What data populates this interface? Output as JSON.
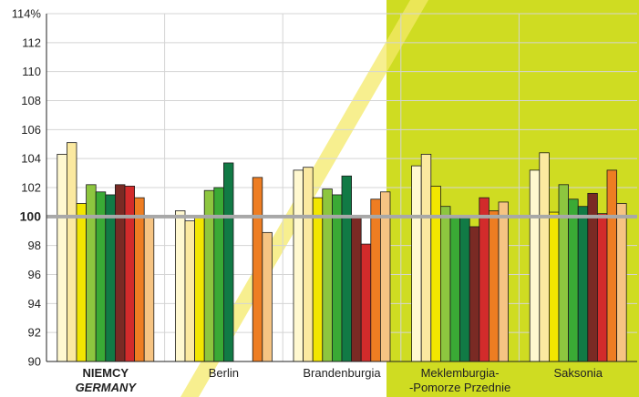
{
  "chart_data": {
    "type": "bar",
    "ylim": [
      90,
      114
    ],
    "y_ticks": [
      "90",
      "92",
      "94",
      "96",
      "98",
      "100",
      "102",
      "104",
      "106",
      "108",
      "110",
      "112",
      "114%"
    ],
    "reference_value": 100,
    "reference_label": "100",
    "grid": true,
    "highlight_categories": [
      3,
      4
    ],
    "categories": [
      {
        "lines": [
          "NIEMCY",
          "GERMANY"
        ],
        "values": [
          104.3,
          105.1,
          100.9,
          102.2,
          101.7,
          101.5,
          102.2,
          102.1,
          101.3,
          100.0
        ]
      },
      {
        "lines": [
          "Berlin"
        ],
        "values": [
          100.4,
          99.7,
          100.0,
          101.8,
          102.0,
          103.7,
          null,
          null,
          102.7,
          98.9
        ]
      },
      {
        "lines": [
          "Brandenburgia"
        ],
        "values": [
          103.2,
          103.4,
          101.3,
          101.9,
          101.5,
          102.8,
          99.9,
          98.1,
          101.2,
          101.7
        ]
      },
      {
        "lines": [
          "Meklemburgia-",
          "-Pomorze Przednie"
        ],
        "values": [
          103.5,
          104.3,
          102.1,
          100.7,
          99.9,
          99.9,
          99.3,
          101.3,
          100.4,
          101.0
        ]
      },
      {
        "lines": [
          "Saksonia"
        ],
        "values": [
          103.2,
          104.4,
          100.3,
          102.2,
          101.2,
          100.7,
          101.6,
          100.2,
          103.2,
          100.9
        ]
      }
    ],
    "bar_colors": [
      "#fff8d0",
      "#fbe9a0",
      "#f2e600",
      "#8dc63f",
      "#3aaa35",
      "#117a45",
      "#7a2a24",
      "#d22b2b",
      "#ee7d22",
      "#f6c483"
    ],
    "colors": {
      "highlight": "#cfdc22",
      "reference_line": "#a8a8a8",
      "grid": "#d4d4d4",
      "bar_outline": "#1a1a1a",
      "diagonal_stripe": "#f4ea6a"
    }
  }
}
